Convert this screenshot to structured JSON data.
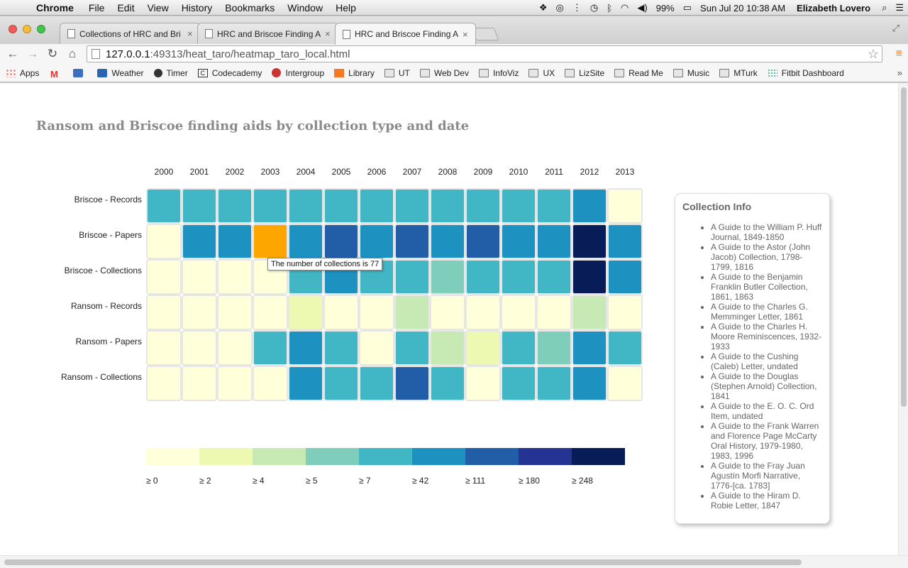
{
  "menubar": {
    "app": "Chrome",
    "items": [
      "File",
      "Edit",
      "View",
      "History",
      "Bookmarks",
      "Window",
      "Help"
    ],
    "battery": "99%",
    "clock": "Sun Jul 20  10:38 AM",
    "user": "Elizabeth Lovero"
  },
  "tabs": [
    {
      "label": "Collections of HRC and Bri"
    },
    {
      "label": "HRC and Briscoe Finding A"
    },
    {
      "label": "HRC and Briscoe Finding A"
    }
  ],
  "url": {
    "host": "127.0.0.1",
    "path": ":49313/heat_taro/heatmap_taro_local.html"
  },
  "bookmarks": [
    {
      "label": "Apps",
      "icon": "apps-grid-icon",
      "cls": "grid"
    },
    {
      "label": "",
      "icon": "gmail-icon",
      "cls": "gm"
    },
    {
      "label": "",
      "icon": "google-icon",
      "cls": "sq"
    },
    {
      "label": "Weather",
      "icon": "weather-icon",
      "cls": "wx"
    },
    {
      "label": "Timer",
      "icon": "timer-icon",
      "cls": "timer"
    },
    {
      "label": "Codecademy",
      "icon": "codecademy-icon",
      "cls": "cc"
    },
    {
      "label": "Intergroup",
      "icon": "intergroup-icon",
      "cls": "ig"
    },
    {
      "label": "Library",
      "icon": "library-icon",
      "cls": "lib"
    },
    {
      "label": "UT",
      "icon": "folder-icon",
      "cls": "folder"
    },
    {
      "label": "Web Dev",
      "icon": "folder-icon",
      "cls": "folder"
    },
    {
      "label": "InfoViz",
      "icon": "folder-icon",
      "cls": "folder"
    },
    {
      "label": "UX",
      "icon": "folder-icon",
      "cls": "folder"
    },
    {
      "label": "LizSite",
      "icon": "folder-icon",
      "cls": "folder"
    },
    {
      "label": "Read Me",
      "icon": "folder-icon",
      "cls": "folder"
    },
    {
      "label": "Music",
      "icon": "folder-icon",
      "cls": "folder"
    },
    {
      "label": "MTurk",
      "icon": "folder-icon",
      "cls": "folder"
    },
    {
      "label": "Fitbit Dashboard",
      "icon": "fitbit-icon",
      "cls": "fit"
    }
  ],
  "page": {
    "title": "Ransom and Briscoe finding aids by collection type and date",
    "tooltip": "The number of collections is 77"
  },
  "chart_data": {
    "type": "heatmap",
    "title": "Ransom and Briscoe finding aids by collection type and date",
    "x": [
      "2000",
      "2001",
      "2002",
      "2003",
      "2004",
      "2005",
      "2006",
      "2007",
      "2008",
      "2009",
      "2010",
      "2011",
      "2012",
      "2013"
    ],
    "y": [
      "Briscoe - Records",
      "Briscoe - Papers",
      "Briscoe - Collections",
      "Ransom - Records",
      "Ransom - Papers",
      "Ransom - Collections"
    ],
    "legend": {
      "labels": [
        "≥ 0",
        "≥ 2",
        "≥ 4",
        "≥ 5",
        "≥ 7",
        "≥ 42",
        "≥ 111",
        "≥ 180",
        "≥ 248"
      ],
      "colors": [
        "#ffffd9",
        "#edf8b1",
        "#c7e9b4",
        "#7fcdbb",
        "#41b6c4",
        "#1d91c0",
        "#225ea8",
        "#253494",
        "#081d58"
      ]
    },
    "bins": [
      [
        4,
        4,
        4,
        4,
        4,
        4,
        4,
        4,
        4,
        4,
        4,
        4,
        5,
        0
      ],
      [
        0,
        5,
        5,
        -1,
        5,
        6,
        5,
        6,
        5,
        6,
        5,
        5,
        8,
        5
      ],
      [
        0,
        0,
        0,
        0,
        4,
        5,
        4,
        4,
        3,
        4,
        4,
        4,
        8,
        5
      ],
      [
        0,
        0,
        0,
        0,
        1,
        0,
        0,
        2,
        0,
        0,
        0,
        0,
        2,
        0
      ],
      [
        0,
        0,
        0,
        4,
        5,
        4,
        0,
        4,
        2,
        1,
        4,
        3,
        5,
        4
      ],
      [
        0,
        0,
        0,
        0,
        5,
        4,
        4,
        6,
        4,
        0,
        4,
        4,
        5,
        0
      ]
    ],
    "highlight_color": "#ffa500",
    "hovered_cell": {
      "row": "Briscoe - Papers",
      "col": "2003",
      "value": 77
    }
  },
  "info": {
    "heading": "Collection Info",
    "items": [
      "A Guide to the William P. Huff Journal, 1849-1850",
      "A Guide to the Astor (John Jacob) Collection, 1798-1799, 1816",
      "A Guide to the Benjamin Franklin Butler Collection, 1861, 1863",
      "A Guide to the Charles G. Memminger Letter, 1861",
      "A Guide to the Charles H. Moore Reminiscences, 1932-1933",
      "A Guide to the Cushing (Caleb) Letter, undated",
      "A Guide to the Douglas (Stephen Arnold) Collection, 1841",
      "A Guide to the E. O. C. Ord Item, undated",
      "A Guide to the Frank Warren and Florence Page McCarty Oral History, 1979-1980, 1983, 1996",
      "A Guide to the Fray Juan Agustín Morfi Narrative, 1776-[ca. 1783]",
      "A Guide to the Hiram D. Robie Letter, 1847"
    ]
  }
}
